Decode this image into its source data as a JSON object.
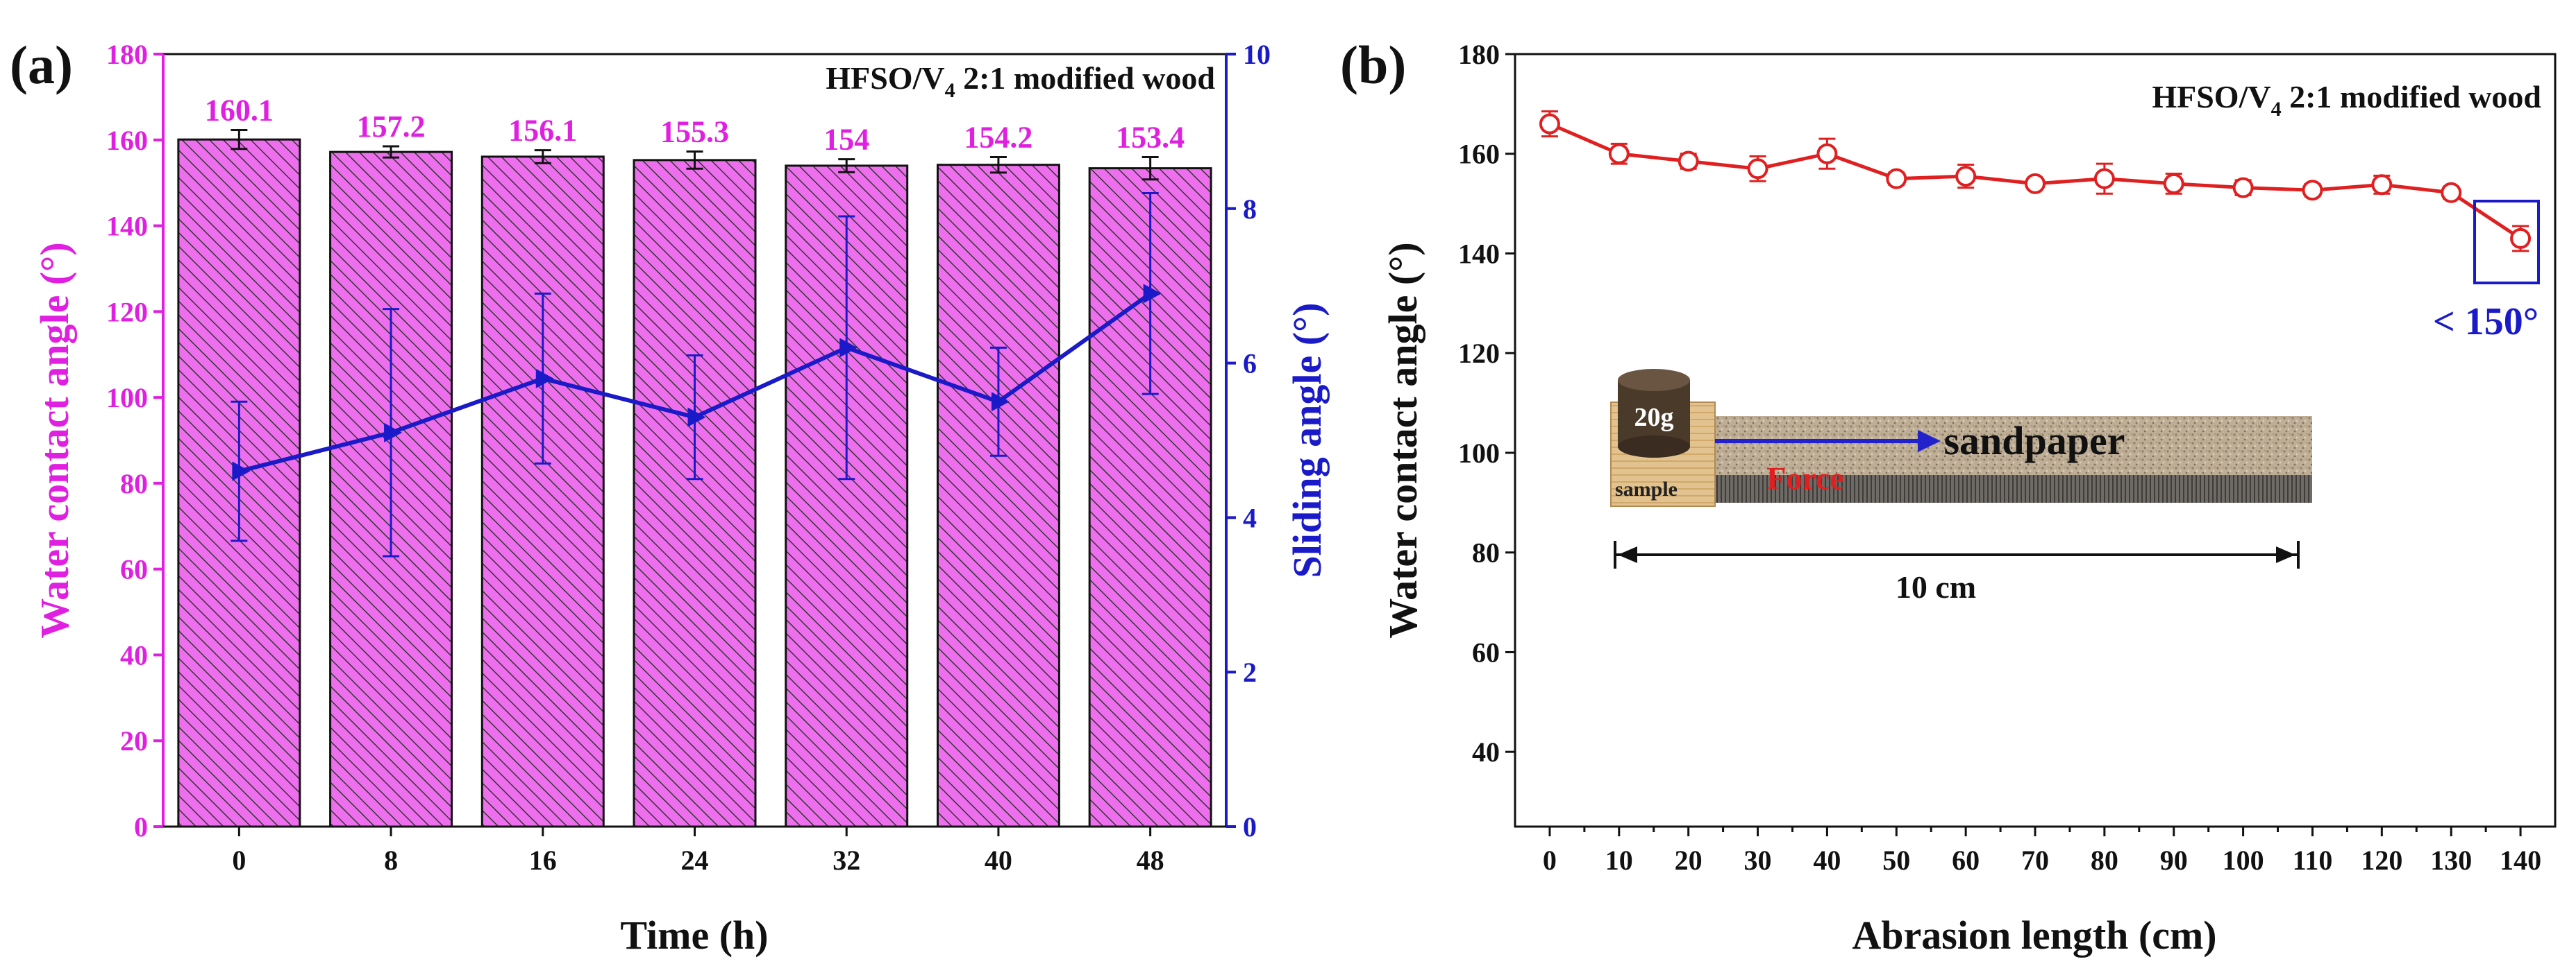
{
  "chart_data": [
    {
      "panel_label": "(a)",
      "type": "bar",
      "title": "HFSO/V",
      "title_subscript": "4",
      "title_rest": " 2:1 modified wood",
      "xlabel": "Time (h)",
      "ylabel": "Water contact angle (°)",
      "y2label": "Sliding angle (°)",
      "categories": [
        "0",
        "8",
        "16",
        "24",
        "32",
        "40",
        "48"
      ],
      "ylim": [
        0,
        180
      ],
      "yticks": [
        "0",
        "20",
        "40",
        "60",
        "80",
        "100",
        "120",
        "140",
        "160",
        "180"
      ],
      "y2lim": [
        0,
        10
      ],
      "y2ticks": [
        "0",
        "2",
        "4",
        "6",
        "8",
        "10"
      ],
      "series": [
        {
          "name": "Water contact angle",
          "type": "bar",
          "axis": "left",
          "values": [
            160.1,
            157.2,
            156.1,
            155.3,
            154,
            154.2,
            153.4
          ],
          "labels": [
            "160.1",
            "157.2",
            "156.1",
            "155.3",
            "154",
            "154.2",
            "153.4"
          ],
          "errors": [
            2.2,
            1.3,
            1.5,
            2.0,
            1.5,
            1.8,
            2.6
          ]
        },
        {
          "name": "Sliding angle",
          "type": "line",
          "axis": "right",
          "values": [
            4.6,
            5.1,
            5.8,
            5.3,
            6.2,
            5.5,
            6.9
          ],
          "errors": [
            0.9,
            1.6,
            1.1,
            0.8,
            1.7,
            0.7,
            1.3
          ]
        }
      ],
      "colors": {
        "bar_fill": "#ee6fee",
        "hatch": "#333333",
        "left_axis": "#e020e0",
        "right_axis": "#1a1ac8",
        "line": "#1a1ac8"
      }
    },
    {
      "panel_label": "(b)",
      "type": "line",
      "title": "HFSO/V",
      "title_subscript": "4",
      "title_rest": " 2:1 modified wood",
      "xlabel": "Abrasion length (cm)",
      "ylabel": "Water contact angle (°)",
      "x": [
        0,
        10,
        20,
        30,
        40,
        50,
        60,
        70,
        80,
        90,
        100,
        110,
        120,
        130,
        140
      ],
      "xticks": [
        "0",
        "10",
        "20",
        "30",
        "40",
        "50",
        "60",
        "70",
        "80",
        "90",
        "100",
        "110",
        "120",
        "130",
        "140"
      ],
      "xlim": [
        -5,
        145
      ],
      "ylim": [
        25,
        180
      ],
      "yticks": [
        "40",
        "60",
        "80",
        "100",
        "120",
        "140",
        "160",
        "180"
      ],
      "series": [
        {
          "name": "Water contact angle",
          "values": [
            166,
            160,
            158.5,
            157,
            160,
            155,
            155.5,
            154,
            155,
            154,
            153.2,
            152.7,
            153.8,
            152.2,
            143
          ],
          "errors": [
            2.5,
            2.0,
            1.5,
            2.5,
            3.0,
            1.2,
            2.3,
            1.0,
            3.0,
            2.0,
            1.5,
            1.2,
            1.8,
            1.2,
            2.5
          ]
        }
      ],
      "annotation": "< 150°",
      "inset": {
        "weight_label": "20g",
        "sample_label": "sample",
        "force_label": "Force",
        "sandpaper_label": "sandpaper",
        "distance_label": "10 cm"
      },
      "colors": {
        "line": "#e02020",
        "marker_fill": "#ffffff",
        "highlight_box": "#1a1ac8",
        "annotation": "#1a1ac8",
        "force": "#e02020",
        "arrow": "#2222cc"
      }
    }
  ]
}
